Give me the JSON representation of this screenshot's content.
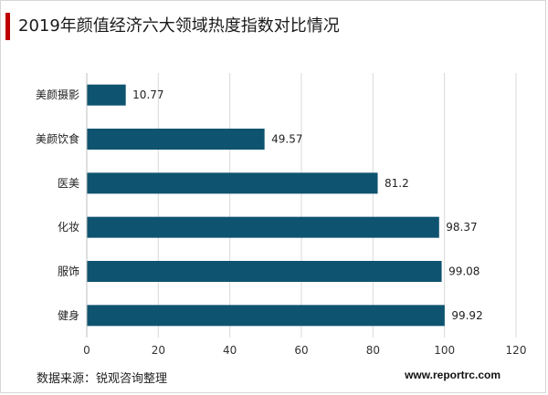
{
  "title": "2019年颜值经济六大领域热度指数对比情况",
  "source": "数据来源：锐观咨询整理",
  "website": "www.reportrc.com",
  "colors": {
    "bar": "#0e5470",
    "accent": "#c00000"
  },
  "chart_data": {
    "type": "bar",
    "orientation": "horizontal",
    "title": "2019年颜值经济六大领域热度指数对比情况",
    "categories": [
      "美颜摄影",
      "美颜饮食",
      "医美",
      "化妆",
      "服饰",
      "健身"
    ],
    "values": [
      10.77,
      49.57,
      81.2,
      98.37,
      99.08,
      99.92
    ],
    "value_labels": [
      "10.77",
      "49.57",
      "81.2",
      "98.37",
      "99.08",
      "99.92"
    ],
    "xlim": [
      0,
      120
    ],
    "xticks": [
      0,
      20,
      40,
      60,
      80,
      100,
      120
    ],
    "xlabel": "",
    "ylabel": "",
    "grid": "vertical",
    "legend": "none"
  }
}
